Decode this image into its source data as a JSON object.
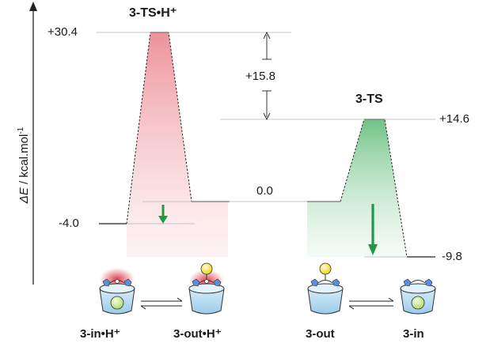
{
  "axis": {
    "ylabel_sym": "ΔE",
    "ylabel_unit": " / kcal.mol",
    "ylabel_sup": "-1"
  },
  "titles": {
    "protonated_ts": "3-TS•H⁺",
    "neutral_ts": "3-TS"
  },
  "energies": {
    "ts_protonated": "+30.4",
    "barrier_difference": "+15.8",
    "ts_neutral": "+14.6",
    "zero": "0.0",
    "in_protonated": "-4.0",
    "in_neutral": "-9.8"
  },
  "states": {
    "in_h": "3-in•H⁺",
    "out_h": "3-out•H⁺",
    "out": "3-out",
    "in": "3-in"
  },
  "colors": {
    "protonated": "#e8707a",
    "neutral": "#4fb56a",
    "arrow_green": "#1f9a44",
    "axis": "#222222",
    "line": "#b5b5b5"
  }
}
